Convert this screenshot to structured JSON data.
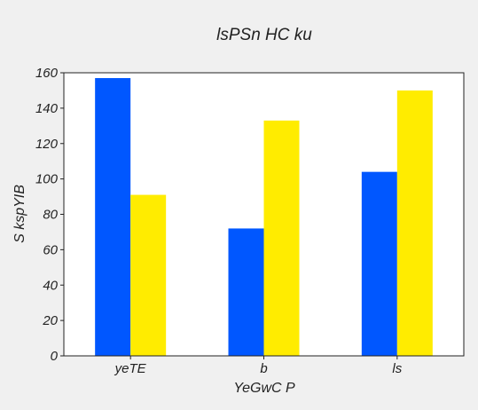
{
  "chart_data": {
    "type": "bar",
    "title": "lsPSn  HC ku",
    "xlabel": "YeGwC P",
    "ylabel": "S kspYIB",
    "categories": [
      "yeTE",
      "b",
      "ls"
    ],
    "series": [
      {
        "values": [
          157,
          72,
          104
        ],
        "color": "#0057ff"
      },
      {
        "values": [
          91,
          133,
          150
        ],
        "color": "#ffec00"
      }
    ],
    "ylim": [
      0,
      160
    ],
    "yticks": [
      "0",
      "20",
      "40",
      "60",
      "80",
      "100",
      "120",
      "140",
      "160"
    ],
    "grid": false,
    "legend": "none"
  },
  "colors": {
    "background": "#f0f0f0",
    "plot_background": "#ffffff",
    "axis": "#222222"
  }
}
